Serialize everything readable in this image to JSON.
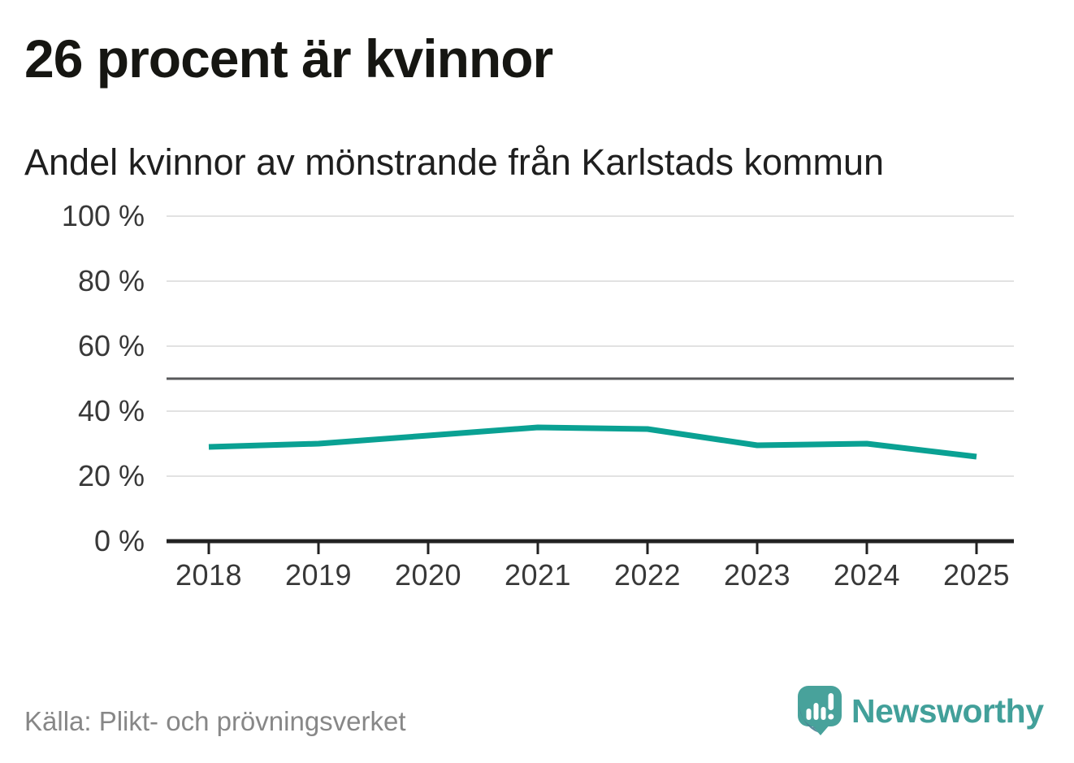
{
  "header": {
    "title": "26 procent är kvinnor",
    "subtitle": "Andel kvinnor av mönstrande från Karlstads kommun"
  },
  "chart_data": {
    "type": "line",
    "title": "Andel kvinnor av mönstrande från Karlstads kommun",
    "categories": [
      "2018",
      "2019",
      "2020",
      "2021",
      "2022",
      "2023",
      "2024",
      "2025"
    ],
    "series": [
      {
        "name": "Andel kvinnor av mönstrande",
        "values": [
          29,
          30,
          32.5,
          35,
          34.5,
          29.5,
          30,
          26
        ]
      }
    ],
    "unit": "%",
    "ylim": [
      0,
      100
    ],
    "yticks": [
      100,
      80,
      60,
      40,
      20,
      0
    ],
    "ytick_suffix": " %",
    "reference_line": 50,
    "grid": true,
    "legend": "none"
  },
  "footer": {
    "source": "Källa: Plikt- och prövningsverket",
    "brand": "Newsworthy"
  },
  "colors": {
    "accent": "#0aa193",
    "grid": "#e2e2e2",
    "reference": "#58595b",
    "axis": "#222222",
    "tick_label": "#383838",
    "source_text": "#878787",
    "logo_teal": "#48a29b",
    "logo_text": "#42a09a",
    "logo_shade": "#4a7e92"
  },
  "icons": {
    "logo": "newsworthy-speech-bubble-barchart-icon"
  }
}
